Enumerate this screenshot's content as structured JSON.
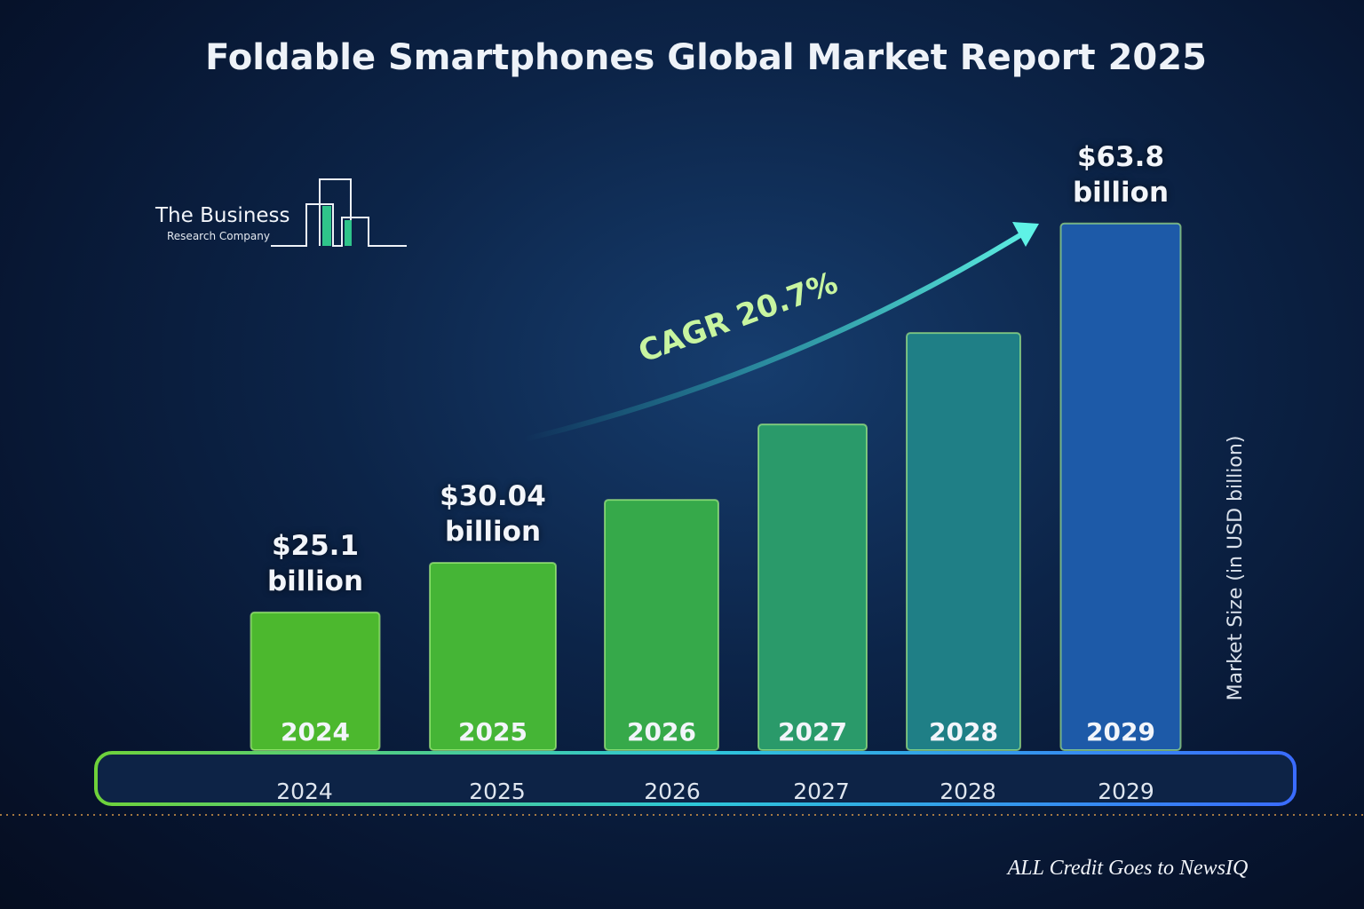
{
  "title": "Foldable Smartphones Global Market Report 2025",
  "logo": {
    "line1": "The Business",
    "line2": "Research Company"
  },
  "credit": "ALL Credit Goes to NewsIQ",
  "chart_data": {
    "type": "bar",
    "categories": [
      "2024",
      "2025",
      "2026",
      "2027",
      "2028",
      "2029"
    ],
    "values": [
      25.1,
      30.04,
      36.3,
      43.8,
      52.9,
      63.8
    ],
    "value_labels": [
      "$25.1 billion",
      "$30.04 billion",
      null,
      null,
      null,
      "$63.8 billion"
    ],
    "colors": [
      "#4cb82e",
      "#45b536",
      "#36a94a",
      "#2a9a6a",
      "#1f7f86",
      "#1d5aa8"
    ],
    "y_axis_label": "Market Size (in USD billion)",
    "annotation": "CAGR 20.7%"
  }
}
